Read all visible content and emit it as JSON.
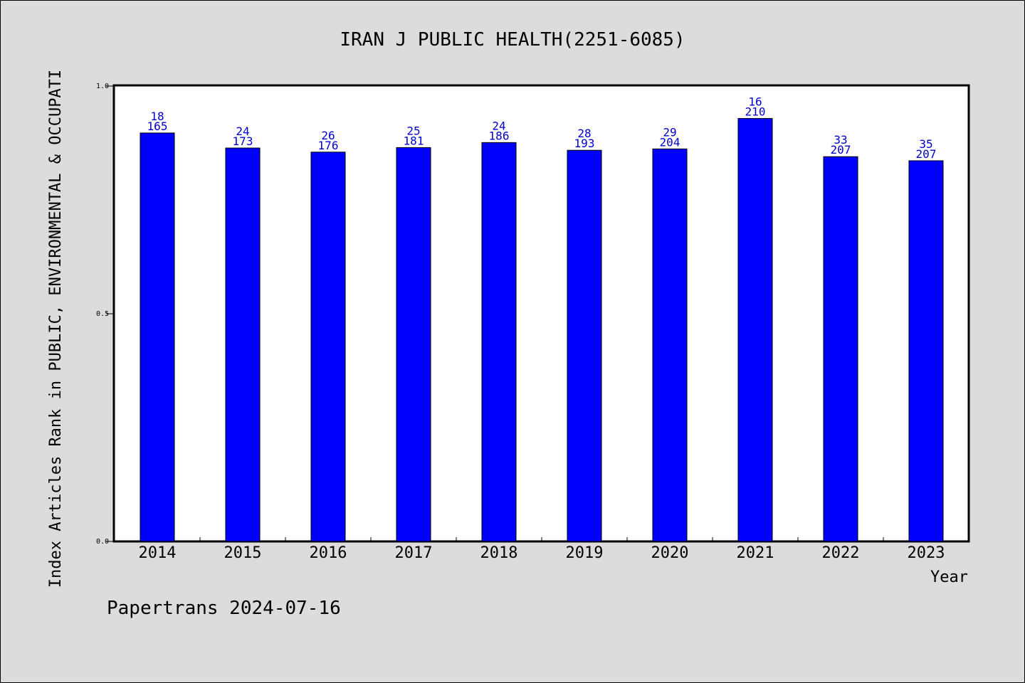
{
  "chart_data": {
    "type": "bar",
    "title": "IRAN J PUBLIC HEALTH(2251-6085)",
    "xlabel": "Year",
    "ylabel": "Index Articles Rank in PUBLIC, ENVIRONMENTAL & OCCUPATI",
    "ylim": [
      0.0,
      1.0
    ],
    "yticks": [
      "0.0",
      "0.5",
      "1.0"
    ],
    "categories": [
      "2014",
      "2015",
      "2016",
      "2017",
      "2018",
      "2019",
      "2020",
      "2021",
      "2022",
      "2023"
    ],
    "values": [
      0.897,
      0.864,
      0.855,
      0.865,
      0.876,
      0.859,
      0.862,
      0.929,
      0.845,
      0.836
    ],
    "ranks": [
      "18",
      "24",
      "26",
      "25",
      "24",
      "28",
      "29",
      "16",
      "33",
      "35"
    ],
    "totals": [
      "165",
      "173",
      "176",
      "181",
      "186",
      "193",
      "204",
      "210",
      "207",
      "207"
    ],
    "bar_color": "#0000ff",
    "label_color": "#0000cc",
    "grid": false
  },
  "footer": {
    "source": "Papertrans 2024-07-16"
  }
}
